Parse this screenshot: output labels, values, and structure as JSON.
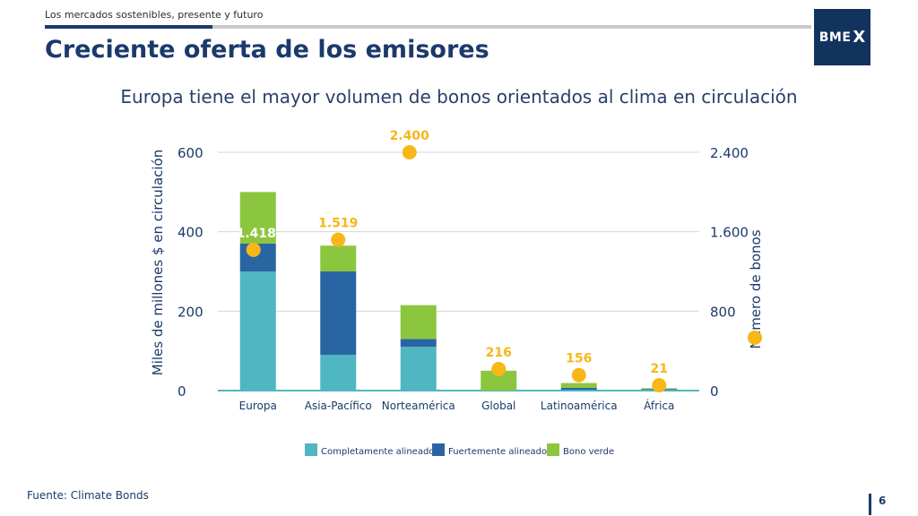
{
  "header": {
    "caption": "Los mercados sostenibles, presente y futuro",
    "title": "Creciente oferta de los emisores",
    "logo_text": "BME",
    "logo_mark": "X"
  },
  "footer": {
    "source": "Fuente: Climate Bonds",
    "page_number": "6"
  },
  "colors": {
    "navy": "#1b3a6b",
    "completamente": "#4fb7c1",
    "fuertemente": "#2a65a3",
    "verde": "#8cc63f",
    "dots": "#f7b718"
  },
  "chart_data": {
    "type": "bar",
    "stacked": true,
    "title": "Europa tiene el mayor volumen de bonos orientados al clima en circulación",
    "categories": [
      "Europa",
      "Asia-Pacífico",
      "Norteamérica",
      "Global",
      "Latinoamérica",
      "África"
    ],
    "series": [
      {
        "name": "Completamente alineado",
        "values": [
          300,
          90,
          110,
          0,
          2,
          2
        ]
      },
      {
        "name": "Fuertemente alineado",
        "values": [
          70,
          210,
          20,
          0,
          5,
          2
        ]
      },
      {
        "name": "Bono verde",
        "values": [
          130,
          65,
          85,
          50,
          12,
          2
        ]
      }
    ],
    "secondary_series": {
      "type": "scatter",
      "axis": "right",
      "values": [
        1418,
        1519,
        2400,
        216,
        156,
        21
      ],
      "labels": [
        "1.418",
        "1.519",
        "2.400",
        "216",
        "156",
        "21"
      ]
    },
    "ylabel": "Miles de millones $ en circulación",
    "y2label": "Número de bonos",
    "ylim": [
      0,
      600
    ],
    "y2lim": [
      0,
      2400
    ],
    "yticks": [
      0,
      200,
      400,
      600
    ],
    "y2ticks": [
      0,
      800,
      1600,
      2400
    ],
    "ytick_labels": [
      "0",
      "200",
      "400",
      "600"
    ],
    "y2tick_labels": [
      "0",
      "800",
      "1.600",
      "2.400"
    ],
    "grid": true,
    "legend_position": "bottom"
  }
}
